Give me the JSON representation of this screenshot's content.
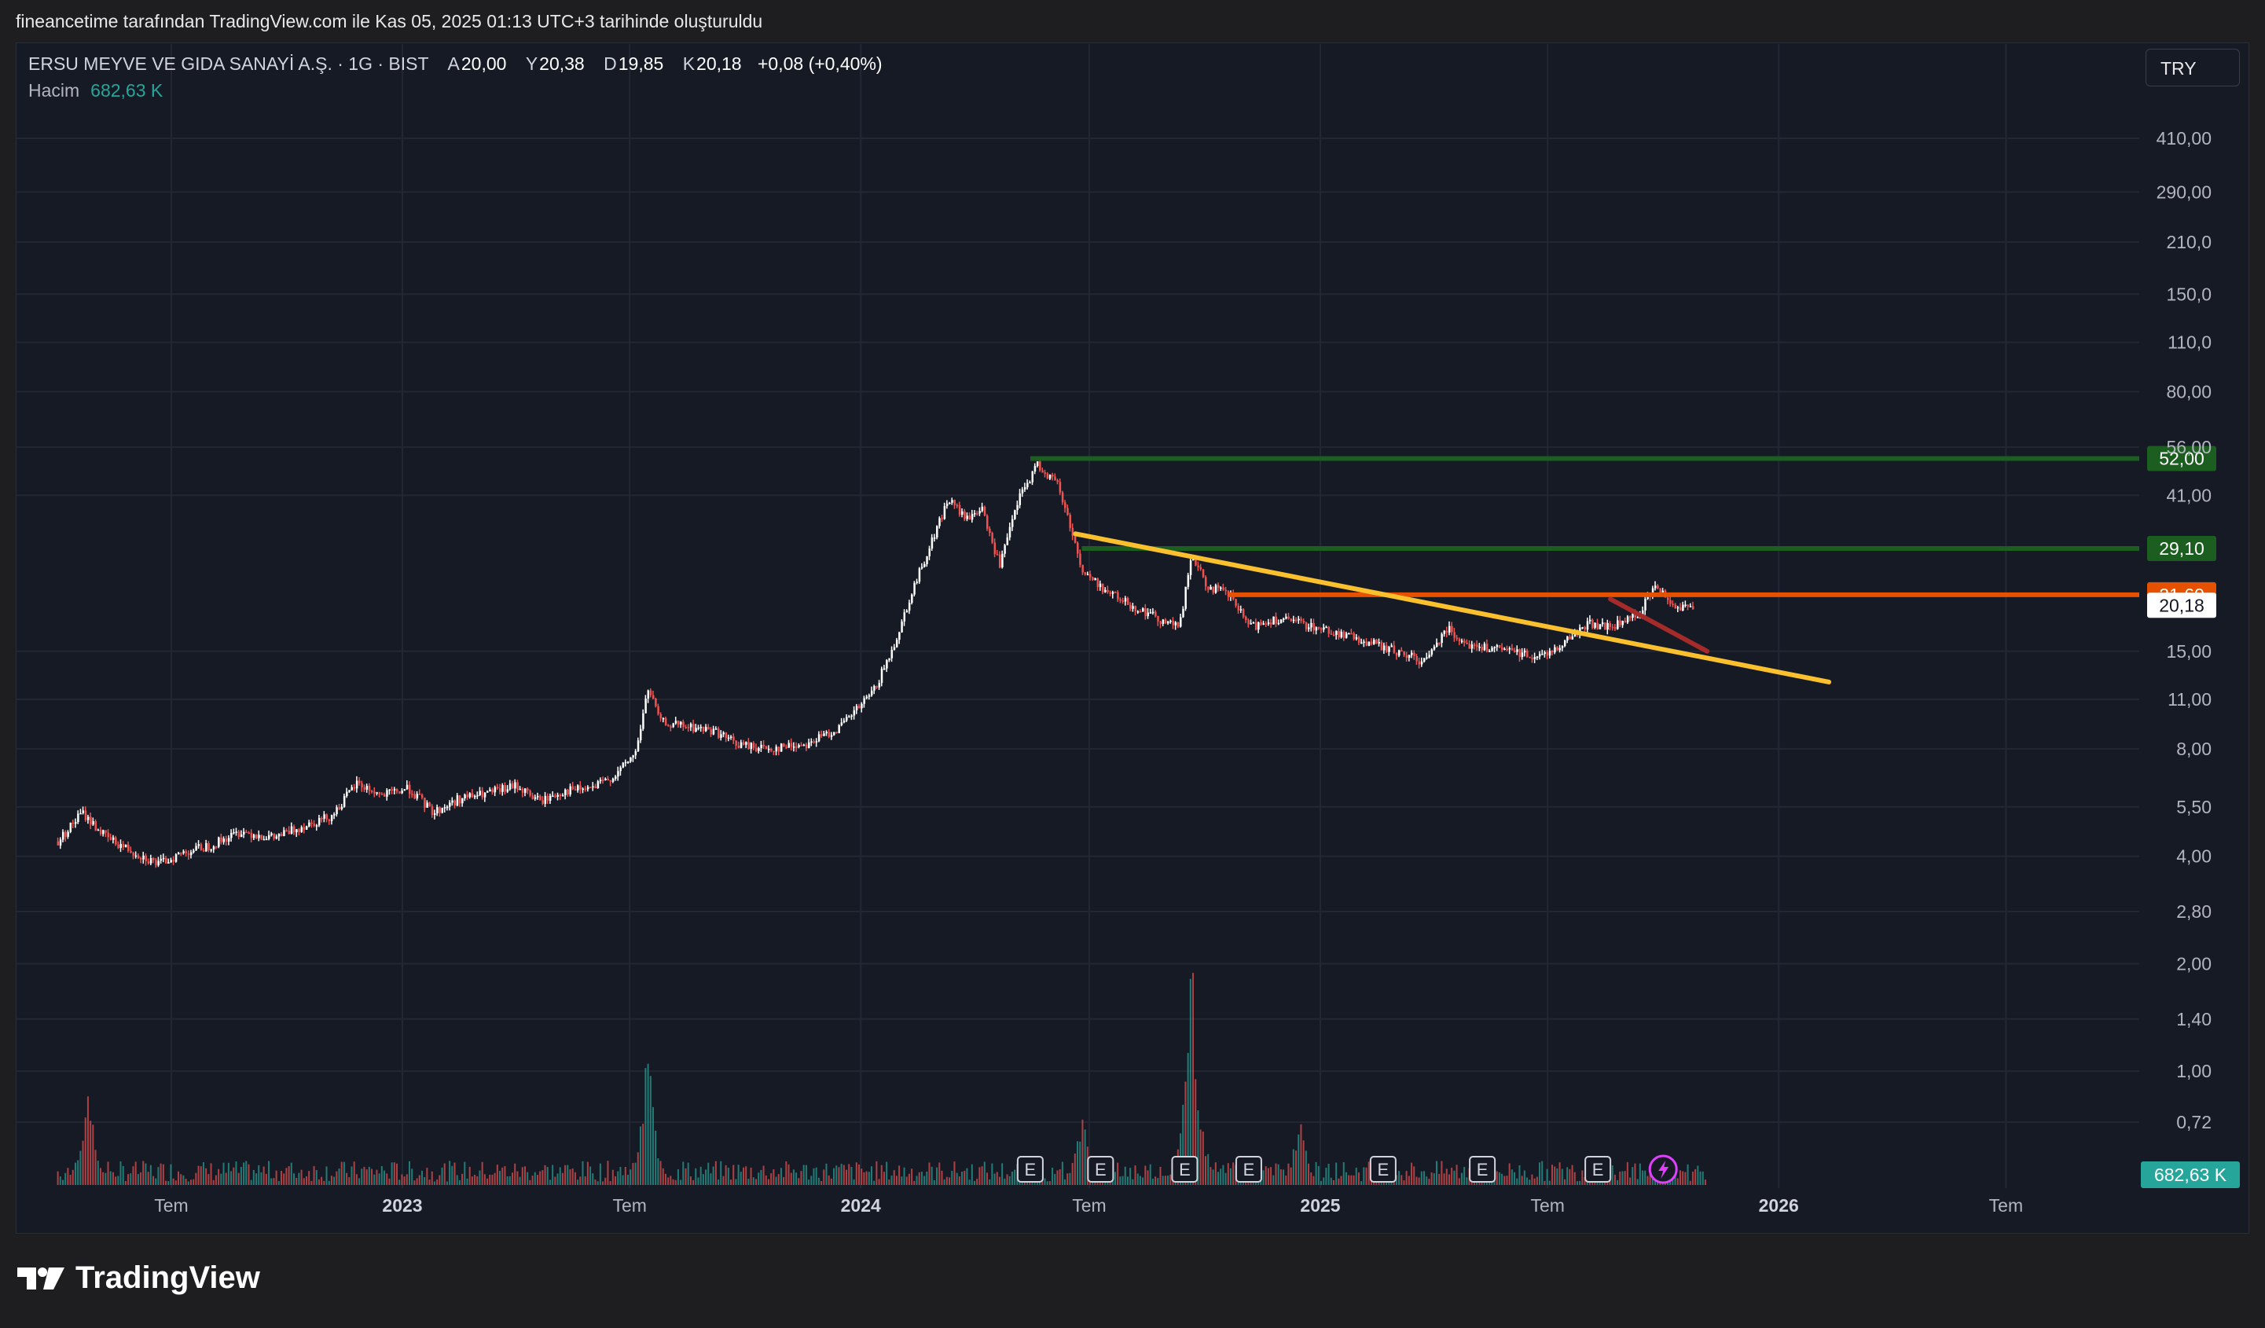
{
  "caption": "fineancetime tarafından TradingView.com ile Kas 05, 2025 01:13 UTC+3 tarihinde oluşturuldu",
  "legend": {
    "symbol": "ERSU MEYVE VE GIDA SANAYİ A.Ş. · 1G · BIST",
    "open_label": "A",
    "open": "20,00",
    "high_label": "Y",
    "high": "20,38",
    "low_label": "D",
    "low": "19,85",
    "close_label": "K",
    "close": "20,18",
    "change": "+0,08 (+0,40%)",
    "volume_label": "Hacim",
    "volume": "682,63 K"
  },
  "currency": "TRY",
  "brand": "TradingView",
  "colors": {
    "background": "#161a25",
    "grid": "#232733",
    "up": "#ffffff",
    "down": "#ef5350",
    "green_level": "#1b5e20",
    "orange_level": "#e65100",
    "trend_yellow": "#fbc02d",
    "trend_red": "#a52a2a",
    "volume_up": "#26a69a",
    "volume_down": "#ef5350"
  },
  "chart_data": {
    "type": "line",
    "scale": "log",
    "y_ticks": [
      "410,00",
      "290,00",
      "210,0",
      "150,0",
      "110,0",
      "80,00",
      "56,00",
      "41,00",
      "15,00",
      "11,00",
      "8,00",
      "5,50",
      "4,00",
      "2,80",
      "2,00",
      "1,40",
      "1,00",
      "0,72"
    ],
    "y_tick_values": [
      410,
      290,
      210,
      150,
      110,
      80,
      56,
      41,
      15,
      11,
      8,
      5.5,
      4,
      2.8,
      2,
      1.4,
      1,
      0.72
    ],
    "x_ticks": [
      "Tem",
      "2023",
      "Tem",
      "2024",
      "Tem",
      "2025",
      "Tem",
      "2026",
      "Tem"
    ],
    "x_tick_dates": [
      "2022-07-01",
      "2023-01-01",
      "2023-07-01",
      "2024-01-01",
      "2024-07-01",
      "2025-01-01",
      "2025-07-01",
      "2026-01-01",
      "2026-07-01"
    ],
    "series": [
      {
        "name": "ERSU",
        "points": [
          [
            "2022-04-01",
            4.4
          ],
          [
            "2022-04-20",
            5.3
          ],
          [
            "2022-05-10",
            4.5
          ],
          [
            "2022-06-01",
            4.1
          ],
          [
            "2022-06-20",
            3.8
          ],
          [
            "2022-07-10",
            4.1
          ],
          [
            "2022-08-01",
            4.3
          ],
          [
            "2022-08-25",
            4.7
          ],
          [
            "2022-09-20",
            4.5
          ],
          [
            "2022-10-15",
            4.9
          ],
          [
            "2022-11-05",
            5.2
          ],
          [
            "2022-11-25",
            6.4
          ],
          [
            "2022-12-15",
            5.9
          ],
          [
            "2023-01-05",
            6.2
          ],
          [
            "2023-01-25",
            5.3
          ],
          [
            "2023-02-15",
            5.8
          ],
          [
            "2023-03-10",
            6.0
          ],
          [
            "2023-04-01",
            6.3
          ],
          [
            "2023-04-20",
            5.7
          ],
          [
            "2023-05-10",
            6.1
          ],
          [
            "2023-06-01",
            6.2
          ],
          [
            "2023-06-20",
            6.8
          ],
          [
            "2023-07-05",
            7.8
          ],
          [
            "2023-07-15",
            11.8
          ],
          [
            "2023-07-25",
            9.5
          ],
          [
            "2023-08-15",
            9.2
          ],
          [
            "2023-09-05",
            9.0
          ],
          [
            "2023-09-25",
            8.2
          ],
          [
            "2023-10-20",
            8.0
          ],
          [
            "2023-11-20",
            8.3
          ],
          [
            "2023-12-15",
            9.2
          ],
          [
            "2024-01-10",
            11.5
          ],
          [
            "2024-01-25",
            15.0
          ],
          [
            "2024-02-10",
            22.0
          ],
          [
            "2024-02-25",
            30.0
          ],
          [
            "2024-03-10",
            40.0
          ],
          [
            "2024-03-25",
            35.0
          ],
          [
            "2024-04-05",
            38.0
          ],
          [
            "2024-04-20",
            26.0
          ],
          [
            "2024-05-05",
            40.0
          ],
          [
            "2024-05-20",
            50.0
          ],
          [
            "2024-06-05",
            44.0
          ],
          [
            "2024-06-15",
            34.0
          ],
          [
            "2024-06-25",
            25.0
          ],
          [
            "2024-07-15",
            22.0
          ],
          [
            "2024-08-05",
            20.0
          ],
          [
            "2024-08-25",
            18.5
          ],
          [
            "2024-09-10",
            17.5
          ],
          [
            "2024-09-20",
            28.0
          ],
          [
            "2024-10-01",
            23.0
          ],
          [
            "2024-10-20",
            21.5
          ],
          [
            "2024-11-05",
            17.5
          ],
          [
            "2024-11-25",
            18.5
          ],
          [
            "2024-12-15",
            18.0
          ],
          [
            "2025-01-10",
            17.0
          ],
          [
            "2025-02-05",
            16.0
          ],
          [
            "2025-03-01",
            15.0
          ],
          [
            "2025-03-25",
            14.0
          ],
          [
            "2025-04-10",
            17.5
          ],
          [
            "2025-05-01",
            15.5
          ],
          [
            "2025-06-01",
            15.0
          ],
          [
            "2025-06-25",
            14.5
          ],
          [
            "2025-07-15",
            16.0
          ],
          [
            "2025-08-01",
            18.0
          ],
          [
            "2025-08-20",
            17.5
          ],
          [
            "2025-09-10",
            19.0
          ],
          [
            "2025-09-25",
            23.0
          ],
          [
            "2025-10-10",
            20.0
          ],
          [
            "2025-10-25",
            20.18
          ]
        ]
      }
    ],
    "volume_peaks": [
      [
        "2022-04-25",
        0.7
      ],
      [
        "2023-07-15",
        0.95
      ],
      [
        "2024-06-25",
        0.55
      ],
      [
        "2024-09-20",
        1.6
      ],
      [
        "2024-12-15",
        0.48
      ],
      [
        "2025-09-25",
        0.22
      ]
    ],
    "horizontal_levels": [
      {
        "label": "52,00",
        "value": 52.0,
        "color": "#1b5e20",
        "start": "2024-05-15"
      },
      {
        "label": "29,10",
        "value": 29.1,
        "color": "#1b5e20",
        "start": "2024-06-25"
      },
      {
        "label": "21,60",
        "value": 21.6,
        "color": "#e65100",
        "start": "2024-10-20"
      }
    ],
    "last_price": {
      "label": "20,18",
      "value": 20.18
    },
    "volume_badge": "682,63 K",
    "trendlines": [
      {
        "color": "#fbc02d",
        "from": [
          "2024-06-20",
          32.0
        ],
        "to": [
          "2026-02-10",
          12.3
        ]
      },
      {
        "color": "#a52a2a",
        "from": [
          "2025-08-20",
          21.0
        ],
        "to": [
          "2025-11-05",
          15.0
        ]
      }
    ],
    "earnings_marker_label": "E",
    "earnings_dates": [
      "2024-05-15",
      "2024-07-10",
      "2024-09-15",
      "2024-11-05",
      "2025-02-20",
      "2025-05-10",
      "2025-08-10"
    ],
    "dividend_marker_date": "2025-10-01"
  }
}
